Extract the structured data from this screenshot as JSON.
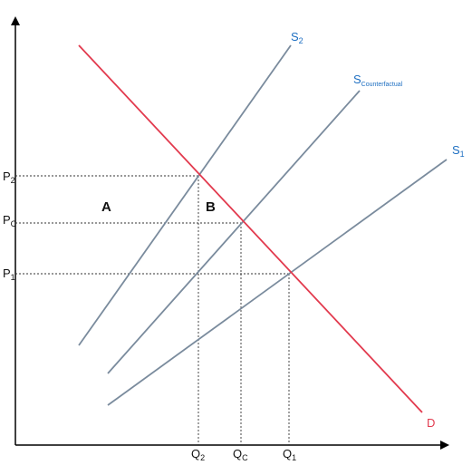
{
  "diagram": {
    "supply_curves": [
      {
        "id": "s2",
        "letter": "S",
        "subscript": "2"
      },
      {
        "id": "scf",
        "letter": "S",
        "subscript": "Counterfactual"
      },
      {
        "id": "s1",
        "letter": "S",
        "subscript": "1"
      }
    ],
    "demand": {
      "label": "D"
    },
    "price_labels": [
      {
        "id": "p2",
        "letter": "P",
        "subscript": "2"
      },
      {
        "id": "pc",
        "letter": "P",
        "subscript": "C"
      },
      {
        "id": "p1",
        "letter": "P",
        "subscript": "1"
      }
    ],
    "quantity_labels": [
      {
        "id": "q2",
        "letter": "Q",
        "subscript": "2"
      },
      {
        "id": "qc",
        "letter": "Q",
        "subscript": "C"
      },
      {
        "id": "q1",
        "letter": "Q",
        "subscript": "1"
      }
    ],
    "regions": {
      "a": "A",
      "b": "B"
    },
    "colors": {
      "supply": "#7a8b9d",
      "demand": "#e23a4e",
      "axis": "#000000",
      "label_blue": "#1e6fc2",
      "guide": "#333333"
    }
  }
}
